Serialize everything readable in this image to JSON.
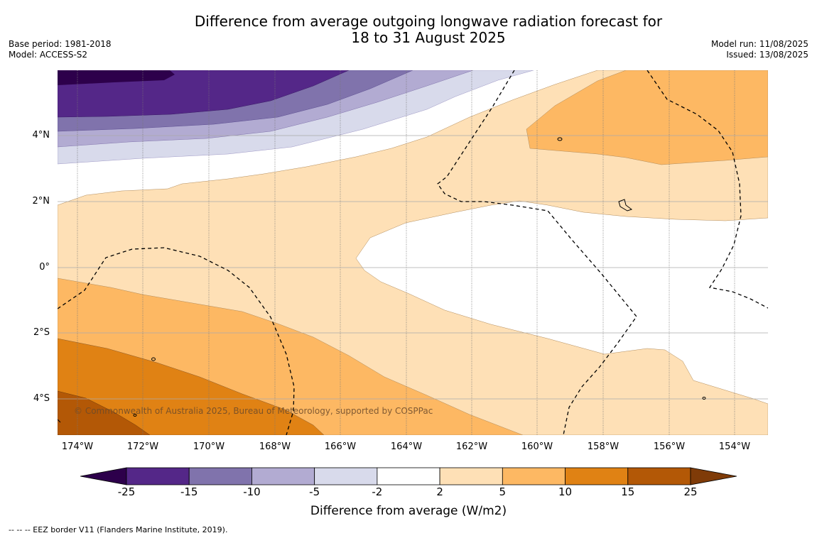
{
  "title": {
    "line1": "Difference from average outgoing longwave radiation forecast for",
    "line2": "18 to 31 August 2025"
  },
  "meta_left": {
    "base_period": "Base period: 1981-2018",
    "model": "Model: ACCESS-S2"
  },
  "meta_right": {
    "model_run": "Model run: 11/08/2025",
    "issued": "Issued: 13/08/2025"
  },
  "map": {
    "lat_labels": [
      "4°N",
      "2°N",
      "0°",
      "2°S",
      "4°S"
    ],
    "lon_labels": [
      "174°W",
      "172°W",
      "170°W",
      "168°W",
      "166°W",
      "164°W",
      "162°W",
      "160°W",
      "158°W",
      "156°W",
      "154°W"
    ],
    "copyright": "© Commonwealth of Australia 2025, Bureau of Meteorology, supported by COSPPac"
  },
  "colorbar": {
    "ticks": [
      "-25",
      "-15",
      "-10",
      "-5",
      "-2",
      "2",
      "5",
      "10",
      "15",
      "25"
    ],
    "colors": {
      "under": "#2d004b",
      "bins": [
        "#542788",
        "#8073ac",
        "#b2abd2",
        "#d8daeb",
        "#ffffff",
        "#fee0b6",
        "#fdb863",
        "#e08214",
        "#b35806"
      ],
      "over": "#7f3b08"
    },
    "label": "Difference from average (W/m2)"
  },
  "footnote": "-- -- -- EEZ border V11 (Flanders Marine Institute, 2019)."
}
